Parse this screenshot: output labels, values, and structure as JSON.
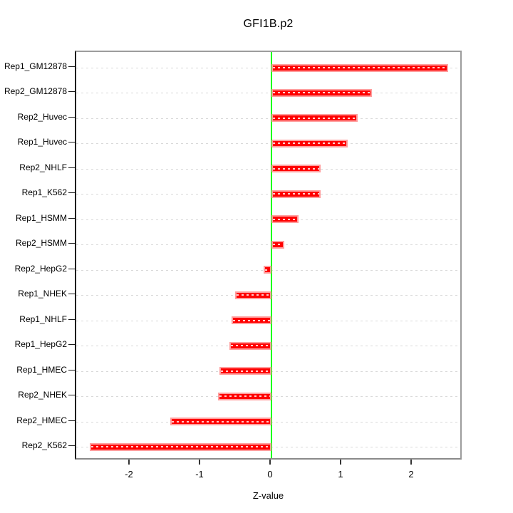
{
  "title": "GFI1B.p2",
  "chart_data": {
    "type": "bar",
    "orientation": "horizontal",
    "title": "GFI1B.p2",
    "xlabel": "Z-value",
    "ylabel": "",
    "categories": [
      "Rep1_GM12878",
      "Rep2_GM12878",
      "Rep2_Huvec",
      "Rep1_Huvec",
      "Rep2_NHLF",
      "Rep1_K562",
      "Rep1_HSMM",
      "Rep2_HSMM",
      "Rep2_HepG2",
      "Rep1_NHEK",
      "Rep1_NHLF",
      "Rep1_HepG2",
      "Rep1_HMEC",
      "Rep2_NHEK",
      "Rep2_HMEC",
      "Rep2_K562"
    ],
    "values": [
      2.51,
      1.42,
      1.22,
      1.08,
      0.7,
      0.7,
      0.38,
      0.18,
      -0.11,
      -0.52,
      -0.57,
      -0.6,
      -0.74,
      -0.76,
      -1.43,
      -2.58
    ],
    "x_ticks": [
      -2,
      -1,
      0,
      1,
      2
    ],
    "xlim": [
      -2.77,
      2.72
    ],
    "grid": true,
    "legend": null,
    "colors": {
      "bar_fill": "#ff0000",
      "bar_border": "#ff9e9e",
      "bar_dash_overlay": "#ffffff",
      "zero_line": "#00ff00",
      "gridline": "#d9d9d9",
      "frame": "#9c9c9c",
      "axis": "#1a1a1a",
      "text": "#000000",
      "background": "#ffffff"
    }
  }
}
